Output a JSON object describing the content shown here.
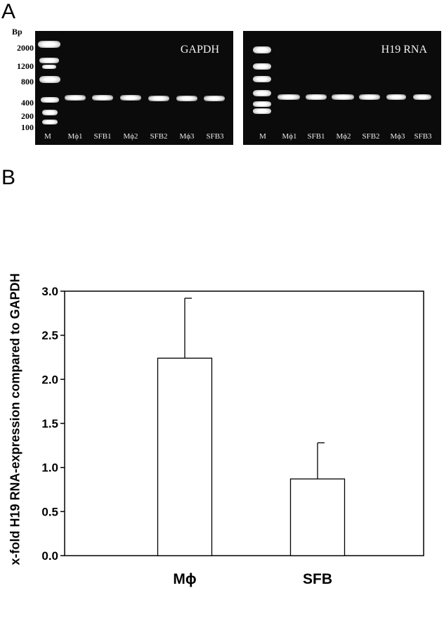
{
  "panels": {
    "a": "A",
    "b": "B"
  },
  "gel": {
    "size_unit": "Bp",
    "ladder": [
      "2000",
      "1200",
      "800",
      "400",
      "200",
      "100"
    ],
    "left": {
      "title": "GAPDH",
      "lanes": [
        "M",
        "Mϕ1",
        "SFB1",
        "Mϕ2",
        "SFB2",
        "Mϕ3",
        "SFB3"
      ]
    },
    "right": {
      "title": "H19 RNA",
      "lanes": [
        "M",
        "Mϕ1",
        "SFB1",
        "Mϕ2",
        "SFB2",
        "Mϕ3",
        "SFB3"
      ]
    }
  },
  "chart_data": {
    "type": "bar",
    "categories": [
      "Mϕ",
      "SFB"
    ],
    "values": [
      2.24,
      0.87
    ],
    "error_upper": [
      0.68,
      0.41
    ],
    "ylabel": "x-fold H19 RNA-expression compared to GAPDH",
    "xlabel": "",
    "ylim": [
      0,
      3.0
    ],
    "yticks": [
      "0.0",
      "0.5",
      "1.0",
      "1.5",
      "2.0",
      "2.5",
      "3.0"
    ],
    "grid": false,
    "bar_color": "#ffffff",
    "edge_color": "#000000"
  }
}
